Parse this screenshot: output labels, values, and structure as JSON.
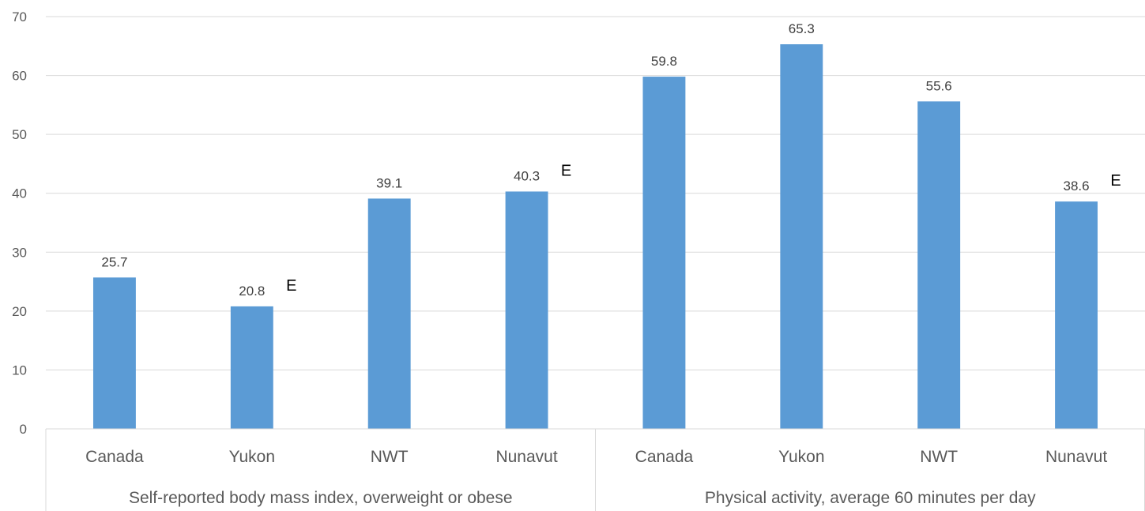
{
  "chart_data": {
    "type": "bar",
    "title": "",
    "xlabel": "",
    "ylabel": "",
    "ylim": [
      0,
      70
    ],
    "yticks": [
      0,
      10,
      20,
      30,
      40,
      50,
      60,
      70
    ],
    "grid": true,
    "legend": "none",
    "bar_color": "#5B9BD5",
    "groups": [
      {
        "label": "Self-reported body mass index, overweight or obese",
        "categories": [
          "Canada",
          "Yukon",
          "NWT",
          "Nunavut"
        ],
        "values": [
          25.7,
          20.8,
          39.1,
          40.3
        ],
        "value_labels": [
          "25.7",
          "20.8",
          "39.1",
          "40.3"
        ],
        "flags": [
          "",
          "E",
          "",
          "E"
        ]
      },
      {
        "label": "Physical activity, average 60 minutes per day",
        "categories": [
          "Canada",
          "Yukon",
          "NWT",
          "Nunavut"
        ],
        "values": [
          59.8,
          65.3,
          55.6,
          38.6
        ],
        "value_labels": [
          "59.8",
          "65.3",
          "55.6",
          "38.6"
        ],
        "flags": [
          "",
          "",
          "",
          "E"
        ]
      }
    ]
  }
}
